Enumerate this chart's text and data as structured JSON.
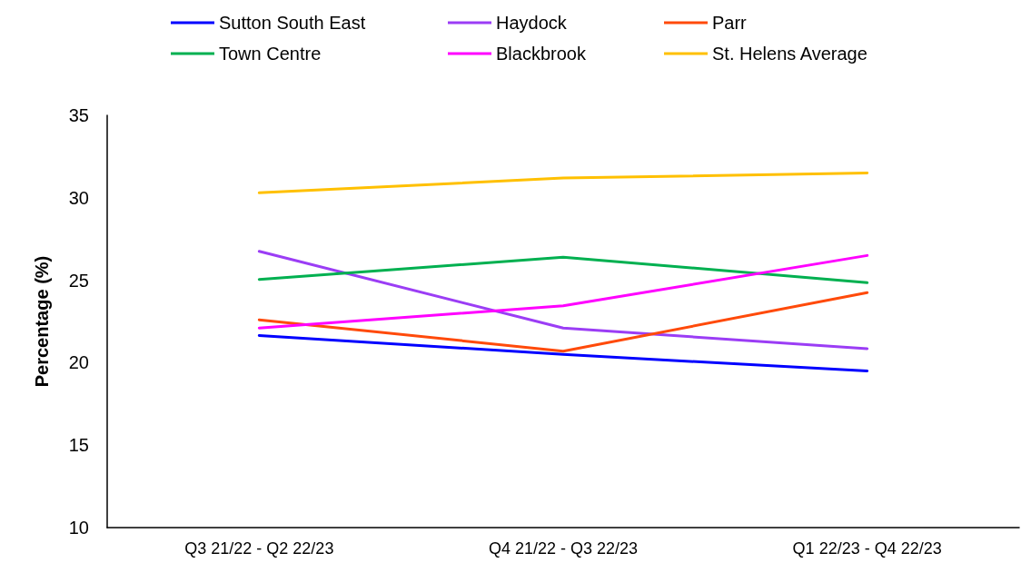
{
  "chart_data": {
    "type": "line",
    "ylabel": "Percentage (%)",
    "categories": [
      "Q3 21/22 - Q2 22/23",
      "Q4 21/22 - Q3 22/23",
      "Q1 22/23 - Q4 22/23"
    ],
    "series": [
      {
        "name": "Sutton South East",
        "color": "#0000ff",
        "values": [
          21.65,
          20.5,
          19.5
        ]
      },
      {
        "name": "Haydock",
        "color": "#9b3df5",
        "values": [
          26.75,
          22.1,
          20.85
        ]
      },
      {
        "name": "Parr",
        "color": "#ff4a0a",
        "values": [
          22.6,
          20.7,
          24.25
        ]
      },
      {
        "name": "Town Centre",
        "color": "#00b050",
        "values": [
          25.05,
          26.4,
          24.85
        ]
      },
      {
        "name": "Blackbrook",
        "color": "#ff00ff",
        "values": [
          22.1,
          23.45,
          26.5
        ]
      },
      {
        "name": "St. Helens Average",
        "color": "#ffc000",
        "values": [
          30.3,
          31.2,
          31.5
        ]
      }
    ],
    "ylim": [
      10,
      35
    ],
    "yticks": [
      10,
      15,
      20,
      25,
      30,
      35
    ],
    "grid": false,
    "legend": "top",
    "marker": "none",
    "line_style": "solid"
  }
}
